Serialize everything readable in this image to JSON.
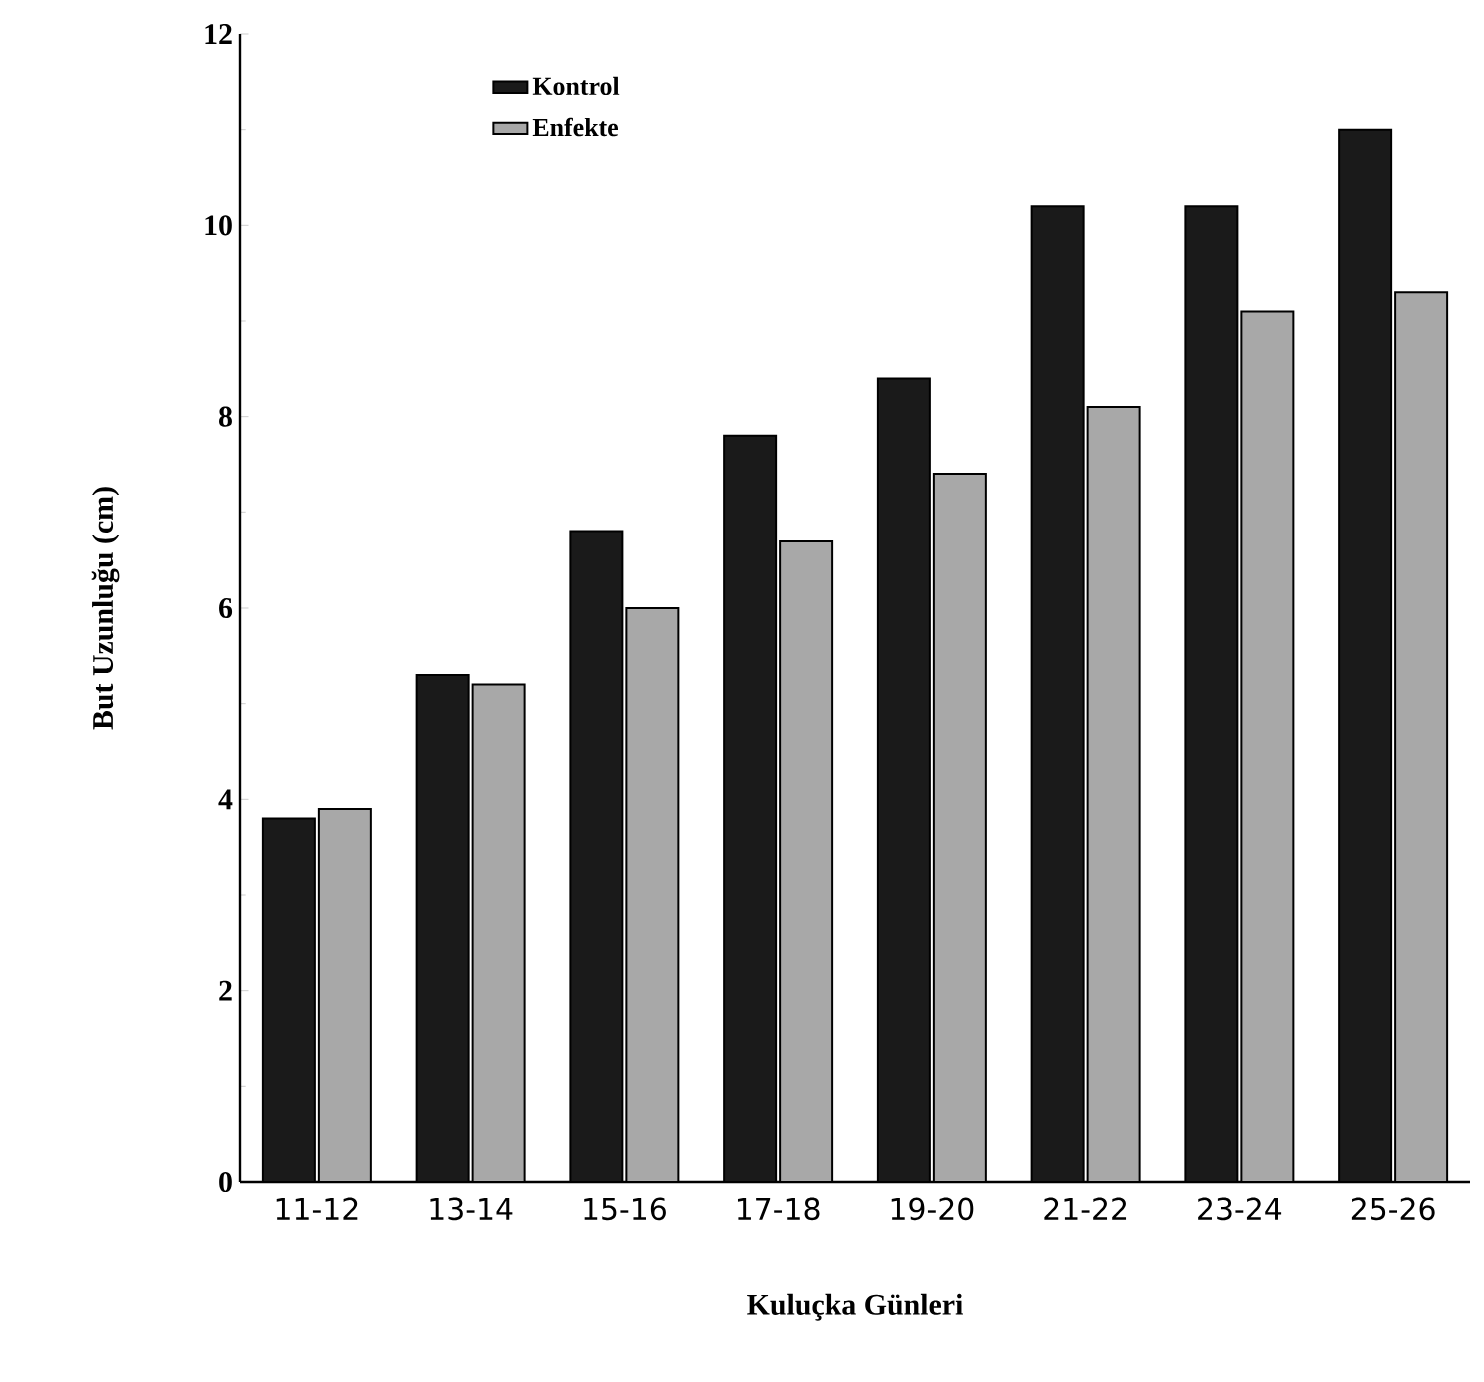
{
  "chart_data": {
    "type": "bar",
    "xlabel": "Kuluçka Günleri",
    "ylabel": "But Uzunluğu (cm)",
    "categories": [
      "11-12",
      "13-14",
      "15-16",
      "17-18",
      "19-20",
      "21-22",
      "23-24",
      "25-26"
    ],
    "series": [
      {
        "name": "Kontrol",
        "color": "#1a1a1a",
        "values": [
          3.8,
          5.3,
          6.8,
          7.8,
          8.4,
          10.2,
          10.2,
          11.0
        ]
      },
      {
        "name": "Enfekte",
        "color": "#a8a8a8",
        "values": [
          3.9,
          5.2,
          6.0,
          6.7,
          7.4,
          8.1,
          9.1,
          9.3
        ]
      }
    ],
    "ylim": [
      0,
      12
    ],
    "yticks": [
      0,
      2,
      4,
      6,
      8,
      10,
      12
    ],
    "grid": false,
    "legend": "top left"
  }
}
